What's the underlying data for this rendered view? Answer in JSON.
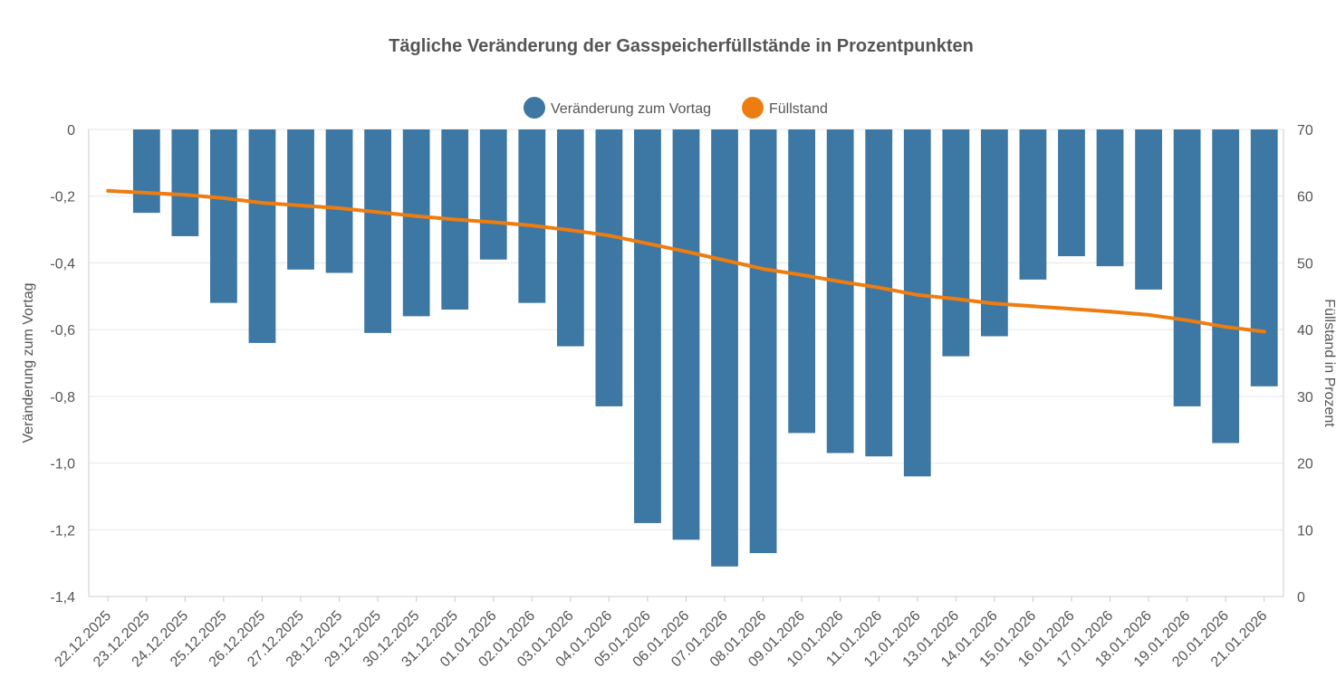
{
  "chart_data": {
    "type": "bar",
    "title": "Tägliche Veränderung der Gasspeicherfüllstände in Prozentpunkten",
    "xlabel": "",
    "ylabel": "Veränderung zum Vortag",
    "y2label": "Füllstand in Prozent",
    "ylim": [
      -1.4,
      0
    ],
    "y2lim": [
      0,
      70
    ],
    "yticks": [
      "0",
      "-0,2",
      "-0,4",
      "-0,6",
      "-0,8",
      "-1,0",
      "-1,2",
      "-1,4"
    ],
    "y2ticks": [
      "70",
      "60",
      "50",
      "40",
      "30",
      "20",
      "10",
      "0"
    ],
    "grid": true,
    "legend_position": "top-center",
    "categories": [
      "22.12.2025",
      "23.12.2025",
      "24.12.2025",
      "25.12.2025",
      "26.12.2025",
      "27.12.2025",
      "28.12.2025",
      "29.12.2025",
      "30.12.2025",
      "31.12.2025",
      "01.01.2026",
      "02.01.2026",
      "03.01.2026",
      "04.01.2026",
      "05.01.2026",
      "06.01.2026",
      "07.01.2026",
      "08.01.2026",
      "09.01.2026",
      "10.01.2026",
      "11.01.2026",
      "12.01.2026",
      "13.01.2026",
      "14.01.2026",
      "15.01.2026",
      "16.01.2026",
      "17.01.2026",
      "18.01.2026",
      "19.01.2026",
      "20.01.2026",
      "21.01.2026"
    ],
    "series": [
      {
        "name": "Veränderung zum Vortag",
        "type": "bar",
        "axis": "left",
        "color": "#3d77a3",
        "values": [
          null,
          -0.25,
          -0.32,
          -0.52,
          -0.64,
          -0.42,
          -0.43,
          -0.61,
          -0.56,
          -0.54,
          -0.39,
          -0.52,
          -0.65,
          -0.83,
          -1.18,
          -1.23,
          -1.31,
          -1.27,
          -0.91,
          -0.97,
          -0.98,
          -1.04,
          -0.68,
          -0.62,
          -0.45,
          -0.38,
          -0.41,
          -0.48,
          -0.83,
          -0.94,
          -0.77
        ]
      },
      {
        "name": "Füllstand",
        "type": "line",
        "axis": "right",
        "color": "#ee7d11",
        "values": [
          60.8,
          60.5,
          60.2,
          59.7,
          59.0,
          58.6,
          58.2,
          57.6,
          57.0,
          56.5,
          56.1,
          55.6,
          54.9,
          54.1,
          52.9,
          51.7,
          50.4,
          49.1,
          48.2,
          47.2,
          46.3,
          45.2,
          44.6,
          43.9,
          43.5,
          43.1,
          42.7,
          42.2,
          41.4,
          40.4,
          39.7
        ]
      }
    ]
  }
}
